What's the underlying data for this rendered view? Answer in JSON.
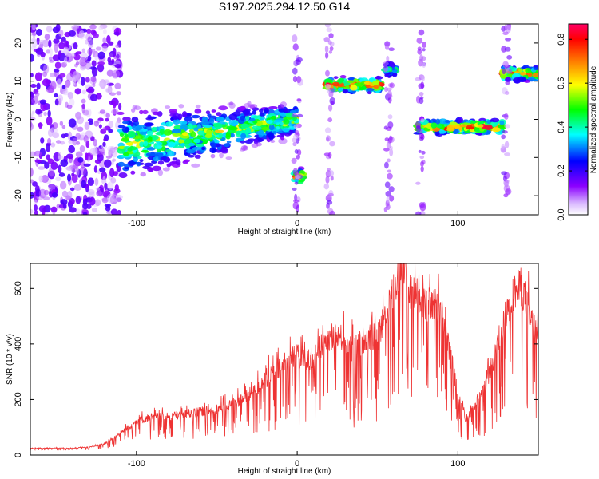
{
  "title": "S197.2025.294.12.50.G14",
  "chart_data": [
    {
      "type": "heatmap",
      "xlabel": "Height of straight line (km)",
      "ylabel": "Frequency (Hz)",
      "xlim": [
        -166,
        150
      ],
      "ylim": [
        -25,
        25
      ],
      "x_ticks": [
        -100,
        0,
        100
      ],
      "y_ticks": [
        -20,
        -10,
        0,
        10,
        20
      ],
      "colorbar": {
        "label": "Normalized spectral amplitude",
        "range": [
          0,
          0.87
        ],
        "ticks": [
          0.0,
          0.2,
          0.4,
          0.6,
          0.8
        ],
        "colors": [
          "#ffffff",
          "#8b00ff",
          "#0000ff",
          "#00ffff",
          "#00ff00",
          "#ffff00",
          "#ff8000",
          "#ff0000",
          "#ff0066"
        ]
      },
      "features": [
        {
          "x_range": [
            -166,
            -110
          ],
          "freq_range": [
            -25,
            25
          ],
          "amplitude": 0.1,
          "note": "diffuse noise"
        },
        {
          "x_range": [
            -110,
            0
          ],
          "freq_center_start": -7,
          "freq_center_end": 0,
          "amplitude": 0.6,
          "note": "rising signal trace"
        },
        {
          "x_range": [
            -2,
            4
          ],
          "freq_center": -15,
          "amplitude": 0.85
        },
        {
          "x_range": [
            18,
            52
          ],
          "freq_center": 9,
          "amplitude": 0.85
        },
        {
          "x_range": [
            55,
            62
          ],
          "freq_center": 13,
          "amplitude": 0.5
        },
        {
          "x_range": [
            75,
            128
          ],
          "freq_center": -2,
          "amplitude": 0.85
        },
        {
          "x_range": [
            128,
            150
          ],
          "freq_center": 12,
          "amplitude": 0.8
        }
      ]
    },
    {
      "type": "line",
      "xlabel": "Height of straight line (km)",
      "ylabel": "SNR (10 * v/v)",
      "xlim": [
        -166,
        150
      ],
      "ylim": [
        0,
        690
      ],
      "x_ticks": [
        -100,
        0,
        100
      ],
      "y_ticks": [
        0,
        200,
        400,
        600
      ],
      "series": [
        {
          "name": "SNR",
          "color": "#ee3333",
          "x": [
            -166,
            -150,
            -140,
            -130,
            -120,
            -110,
            -100,
            -90,
            -80,
            -70,
            -60,
            -50,
            -40,
            -30,
            -20,
            -10,
            0,
            5,
            10,
            15,
            20,
            25,
            30,
            35,
            40,
            45,
            50,
            55,
            60,
            65,
            70,
            75,
            80,
            85,
            90,
            95,
            100,
            105,
            110,
            115,
            120,
            125,
            130,
            135,
            140,
            145,
            150
          ],
          "values": [
            25,
            25,
            25,
            28,
            40,
            80,
            125,
            140,
            140,
            150,
            160,
            170,
            190,
            220,
            280,
            320,
            370,
            340,
            360,
            400,
            430,
            440,
            420,
            380,
            420,
            440,
            430,
            520,
            600,
            690,
            620,
            580,
            550,
            560,
            520,
            380,
            220,
            130,
            180,
            220,
            320,
            400,
            520,
            600,
            620,
            500,
            440
          ],
          "spike_amplitude": [
            8,
            8,
            8,
            10,
            20,
            50,
            80,
            90,
            90,
            95,
            100,
            110,
            120,
            150,
            200,
            230,
            260,
            250,
            250,
            260,
            280,
            290,
            300,
            300,
            300,
            300,
            330,
            400,
            450,
            450,
            450,
            400,
            380,
            380,
            340,
            250,
            150,
            90,
            120,
            160,
            240,
            280,
            350,
            400,
            420,
            400,
            350
          ]
        }
      ]
    }
  ]
}
